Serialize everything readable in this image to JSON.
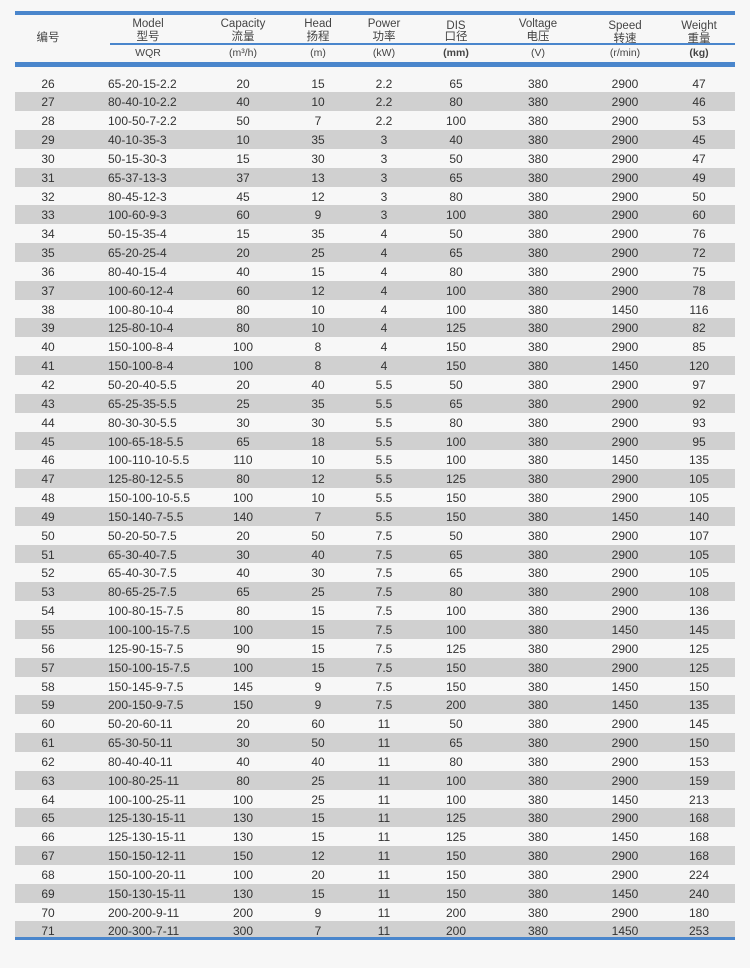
{
  "header": {
    "no": "编号",
    "model": {
      "en": "Model",
      "cn": "型号",
      "unit": "WQR"
    },
    "capacity": {
      "en": "Capacity",
      "cn": "流量",
      "unit": "(m³/h)"
    },
    "head": {
      "en": "Head",
      "cn": "扬程",
      "unit": "(m)"
    },
    "power": {
      "en": "Power",
      "cn": "功率",
      "unit": "(kW)"
    },
    "dis": {
      "en": "DIS",
      "cn": "口径",
      "unit": "(mm)"
    },
    "voltage": {
      "en": "Voltage",
      "cn": "电压",
      "unit": "(V)"
    },
    "speed": {
      "en": "Speed",
      "cn": "转速",
      "unit": "(r/min)"
    },
    "weight": {
      "en": "Weight",
      "cn": "重量",
      "unit": "(kg)"
    }
  },
  "colors": {
    "accent": "#4a86cc",
    "stripe": "#d0d0d0"
  },
  "rows": [
    [
      "26",
      "65-20-15-2.2",
      "20",
      "15",
      "2.2",
      "65",
      "380",
      "2900",
      "47"
    ],
    [
      "27",
      "80-40-10-2.2",
      "40",
      "10",
      "2.2",
      "80",
      "380",
      "2900",
      "46"
    ],
    [
      "28",
      "100-50-7-2.2",
      "50",
      "7",
      "2.2",
      "100",
      "380",
      "2900",
      "53"
    ],
    [
      "29",
      "40-10-35-3",
      "10",
      "35",
      "3",
      "40",
      "380",
      "2900",
      "45"
    ],
    [
      "30",
      "50-15-30-3",
      "15",
      "30",
      "3",
      "50",
      "380",
      "2900",
      "47"
    ],
    [
      "31",
      "65-37-13-3",
      "37",
      "13",
      "3",
      "65",
      "380",
      "2900",
      "49"
    ],
    [
      "32",
      "80-45-12-3",
      "45",
      "12",
      "3",
      "80",
      "380",
      "2900",
      "50"
    ],
    [
      "33",
      "100-60-9-3",
      "60",
      "9",
      "3",
      "100",
      "380",
      "2900",
      "60"
    ],
    [
      "34",
      "50-15-35-4",
      "15",
      "35",
      "4",
      "50",
      "380",
      "2900",
      "76"
    ],
    [
      "35",
      "65-20-25-4",
      "20",
      "25",
      "4",
      "65",
      "380",
      "2900",
      "72"
    ],
    [
      "36",
      "80-40-15-4",
      "40",
      "15",
      "4",
      "80",
      "380",
      "2900",
      "75"
    ],
    [
      "37",
      "100-60-12-4",
      "60",
      "12",
      "4",
      "100",
      "380",
      "2900",
      "78"
    ],
    [
      "38",
      "100-80-10-4",
      "80",
      "10",
      "4",
      "100",
      "380",
      "1450",
      "116"
    ],
    [
      "39",
      "125-80-10-4",
      "80",
      "10",
      "4",
      "125",
      "380",
      "2900",
      "82"
    ],
    [
      "40",
      "150-100-8-4",
      "100",
      "8",
      "4",
      "150",
      "380",
      "2900",
      "85"
    ],
    [
      "41",
      "150-100-8-4",
      "100",
      "8",
      "4",
      "150",
      "380",
      "1450",
      "120"
    ],
    [
      "42",
      "50-20-40-5.5",
      "20",
      "40",
      "5.5",
      "50",
      "380",
      "2900",
      "97"
    ],
    [
      "43",
      "65-25-35-5.5",
      "25",
      "35",
      "5.5",
      "65",
      "380",
      "2900",
      "92"
    ],
    [
      "44",
      "80-30-30-5.5",
      "30",
      "30",
      "5.5",
      "80",
      "380",
      "2900",
      "93"
    ],
    [
      "45",
      "100-65-18-5.5",
      "65",
      "18",
      "5.5",
      "100",
      "380",
      "2900",
      "95"
    ],
    [
      "46",
      "100-110-10-5.5",
      "110",
      "10",
      "5.5",
      "100",
      "380",
      "1450",
      "135"
    ],
    [
      "47",
      "125-80-12-5.5",
      "80",
      "12",
      "5.5",
      "125",
      "380",
      "2900",
      "105"
    ],
    [
      "48",
      "150-100-10-5.5",
      "100",
      "10",
      "5.5",
      "150",
      "380",
      "2900",
      "105"
    ],
    [
      "49",
      "150-140-7-5.5",
      "140",
      "7",
      "5.5",
      "150",
      "380",
      "1450",
      "140"
    ],
    [
      "50",
      "50-20-50-7.5",
      "20",
      "50",
      "7.5",
      "50",
      "380",
      "2900",
      "107"
    ],
    [
      "51",
      "65-30-40-7.5",
      "30",
      "40",
      "7.5",
      "65",
      "380",
      "2900",
      "105"
    ],
    [
      "52",
      "65-40-30-7.5",
      "40",
      "30",
      "7.5",
      "65",
      "380",
      "2900",
      "105"
    ],
    [
      "53",
      "80-65-25-7.5",
      "65",
      "25",
      "7.5",
      "80",
      "380",
      "2900",
      "108"
    ],
    [
      "54",
      "100-80-15-7.5",
      "80",
      "15",
      "7.5",
      "100",
      "380",
      "2900",
      "136"
    ],
    [
      "55",
      "100-100-15-7.5",
      "100",
      "15",
      "7.5",
      "100",
      "380",
      "1450",
      "145"
    ],
    [
      "56",
      "125-90-15-7.5",
      "90",
      "15",
      "7.5",
      "125",
      "380",
      "2900",
      "125"
    ],
    [
      "57",
      "150-100-15-7.5",
      "100",
      "15",
      "7.5",
      "150",
      "380",
      "2900",
      "125"
    ],
    [
      "58",
      "150-145-9-7.5",
      "145",
      "9",
      "7.5",
      "150",
      "380",
      "1450",
      "150"
    ],
    [
      "59",
      "200-150-9-7.5",
      "150",
      "9",
      "7.5",
      "200",
      "380",
      "1450",
      "135"
    ],
    [
      "60",
      "50-20-60-11",
      "20",
      "60",
      "11",
      "50",
      "380",
      "2900",
      "145"
    ],
    [
      "61",
      "65-30-50-11",
      "30",
      "50",
      "11",
      "65",
      "380",
      "2900",
      "150"
    ],
    [
      "62",
      "80-40-40-11",
      "40",
      "40",
      "11",
      "80",
      "380",
      "2900",
      "153"
    ],
    [
      "63",
      "100-80-25-11",
      "80",
      "25",
      "11",
      "100",
      "380",
      "2900",
      "159"
    ],
    [
      "64",
      "100-100-25-11",
      "100",
      "25",
      "11",
      "100",
      "380",
      "1450",
      "213"
    ],
    [
      "65",
      "125-130-15-11",
      "130",
      "15",
      "11",
      "125",
      "380",
      "2900",
      "168"
    ],
    [
      "66",
      "125-130-15-11",
      "130",
      "15",
      "11",
      "125",
      "380",
      "1450",
      "168"
    ],
    [
      "67",
      "150-150-12-11",
      "150",
      "12",
      "11",
      "150",
      "380",
      "2900",
      "168"
    ],
    [
      "68",
      "150-100-20-11",
      "100",
      "20",
      "11",
      "150",
      "380",
      "2900",
      "224"
    ],
    [
      "69",
      "150-130-15-11",
      "130",
      "15",
      "11",
      "150",
      "380",
      "1450",
      "240"
    ],
    [
      "70",
      "200-200-9-11",
      "200",
      "9",
      "11",
      "200",
      "380",
      "2900",
      "180"
    ],
    [
      "71",
      "200-300-7-11",
      "300",
      "7",
      "11",
      "200",
      "380",
      "1450",
      "253"
    ]
  ]
}
